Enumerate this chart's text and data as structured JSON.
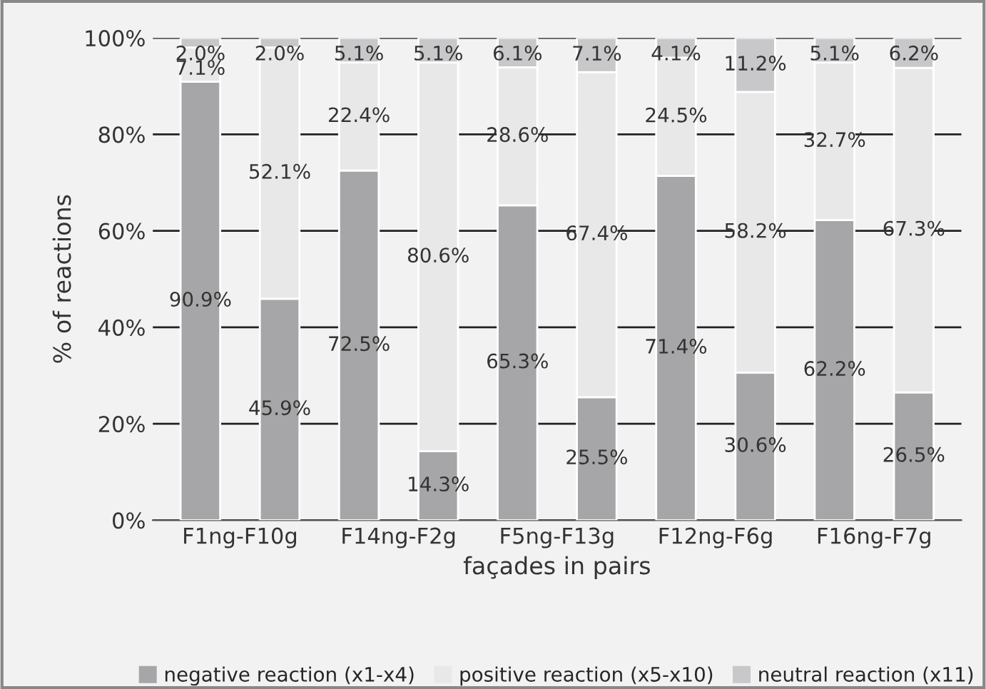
{
  "chart_data": {
    "type": "bar",
    "stacked": true,
    "xlabel": "façades in pairs",
    "ylabel": "% of reactions",
    "categories": [
      "F1ng-F10g",
      null,
      "F14ng-F2g",
      null,
      "F5ng-F13g",
      null,
      "F12ng-F6g",
      null,
      "F16ng-F7g",
      null
    ],
    "series": [
      {
        "name": "negative reaction (x1-x4)",
        "color": "#a6a6a8",
        "values": [
          90.9,
          45.9,
          72.5,
          14.3,
          65.3,
          25.5,
          71.4,
          30.6,
          62.2,
          26.5
        ]
      },
      {
        "name": "positive reaction (x5-x10)",
        "color": "#e8e8e8",
        "values": [
          7.1,
          52.1,
          22.4,
          80.6,
          28.6,
          67.4,
          24.5,
          58.2,
          32.7,
          67.3
        ]
      },
      {
        "name": "neutral reaction (x11)",
        "color": "#c8c8ca",
        "values": [
          2.0,
          2.0,
          5.1,
          5.1,
          6.1,
          7.1,
          4.1,
          11.2,
          5.1,
          6.2
        ]
      }
    ],
    "value_labels": [
      [
        "90.9%",
        "45.9%",
        "72.5%",
        "14.3%",
        "65.3%",
        "25.5%",
        "71.4%",
        "30.6%",
        "62.2%",
        "26.5%"
      ],
      [
        "7.1%",
        "52.1%",
        "22.4%",
        "80.6%",
        "28.6%",
        "67.4%",
        "24.5%",
        "58.2%",
        "32.7%",
        "67.3%"
      ],
      [
        "2.0%",
        "2.0%",
        "5.1%",
        "5.1%",
        "6.1%",
        "7.1%",
        "4.1%",
        "11.2%",
        "5.1%",
        "6.2%"
      ]
    ],
    "ylim": [
      0,
      100
    ],
    "yticks": [
      {
        "value": 0,
        "label": "0%"
      },
      {
        "value": 20,
        "label": "20%"
      },
      {
        "value": 40,
        "label": "40%"
      },
      {
        "value": 60,
        "label": "60%"
      },
      {
        "value": 80,
        "label": "80%"
      },
      {
        "value": 100,
        "label": "100%"
      }
    ],
    "grid": "y",
    "legend": "bottom"
  }
}
